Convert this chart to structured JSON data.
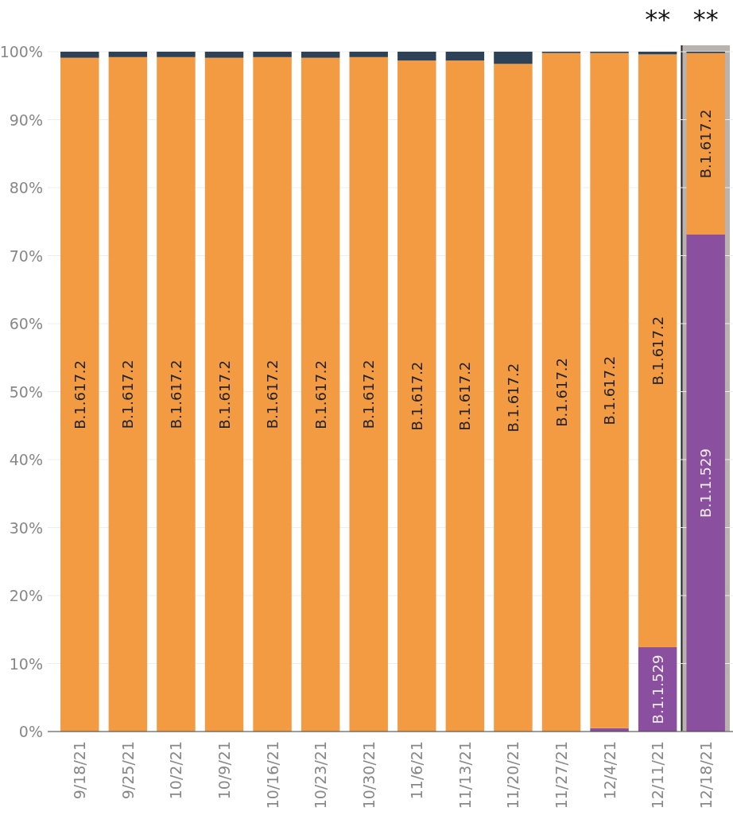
{
  "chart_data": {
    "type": "bar",
    "stacked": true,
    "categories": [
      "9/18/21",
      "9/25/21",
      "10/2/21",
      "10/9/21",
      "10/16/21",
      "10/23/21",
      "10/30/21",
      "11/6/21",
      "11/13/21",
      "11/20/21",
      "11/27/21",
      "12/4/21",
      "12/11/21",
      "12/18/21"
    ],
    "series": [
      {
        "name": "B.1.1.529",
        "color": "#8b4f9f",
        "values": [
          0,
          0,
          0,
          0,
          0,
          0,
          0,
          0,
          0,
          0,
          0,
          0.5,
          12.4,
          73.1
        ]
      },
      {
        "name": "B.1.617.2",
        "color": "#f29b42",
        "values": [
          99.1,
          99.2,
          99.2,
          99.1,
          99.2,
          99.1,
          99.2,
          98.7,
          98.7,
          98.2,
          99.8,
          99.3,
          87.2,
          26.7
        ]
      },
      {
        "color": "#2e4257",
        "values": [
          0.9,
          0.8,
          0.8,
          0.9,
          0.8,
          0.9,
          0.8,
          1.3,
          1.3,
          1.8,
          0.2,
          0.2,
          0.4,
          0.2
        ]
      }
    ],
    "ylim": [
      0,
      100
    ],
    "yticks": [
      {
        "value": 0,
        "label": "0%"
      },
      {
        "value": 10,
        "label": "10%"
      },
      {
        "value": 20,
        "label": "20%"
      },
      {
        "value": 30,
        "label": "30%"
      },
      {
        "value": 40,
        "label": "40%"
      },
      {
        "value": 50,
        "label": "50%"
      },
      {
        "value": 60,
        "label": "60%"
      },
      {
        "value": 70,
        "label": "70%"
      },
      {
        "value": 80,
        "label": "80%"
      },
      {
        "value": 90,
        "label": "90%"
      },
      {
        "value": 100,
        "label": "100%"
      }
    ],
    "grid": "y",
    "bands": [
      {
        "axis": "x",
        "from": "12/18/21",
        "to": "12/18/21",
        "color": "#b9b2ae"
      }
    ],
    "ref_lines": [
      {
        "axis": "x",
        "value": "12/18/21",
        "color": "#222222"
      }
    ],
    "annotations": [
      "**",
      "**"
    ]
  }
}
